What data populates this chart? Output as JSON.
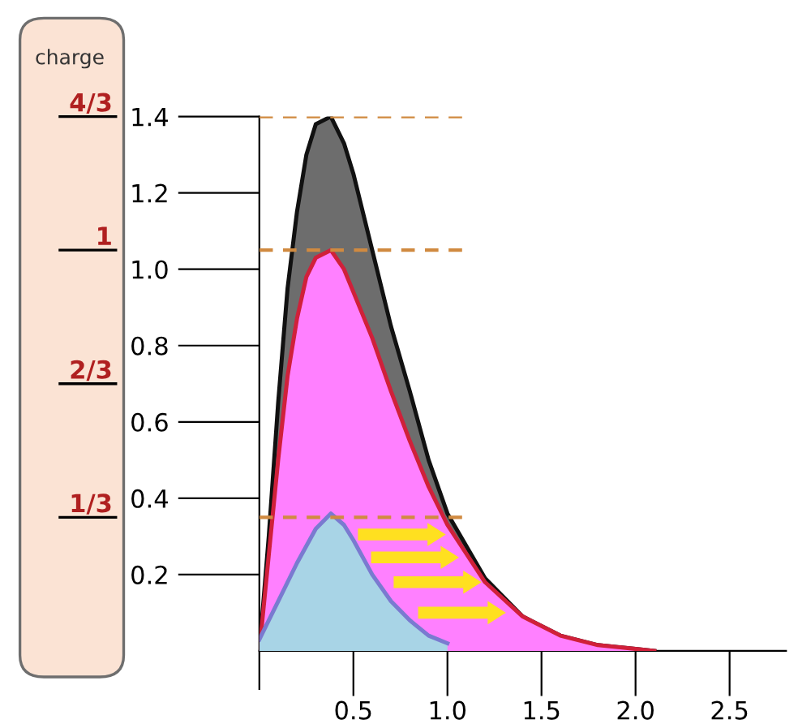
{
  "chart_data": {
    "type": "area",
    "series": [
      {
        "color": "#6d6d6d",
        "x": [
          0,
          0.05,
          0.1,
          0.15,
          0.2,
          0.25,
          0.3,
          0.38,
          0.45,
          0.5,
          0.6,
          0.7,
          0.8,
          0.9,
          1.0,
          1.2,
          1.4,
          1.6,
          1.8,
          2.0,
          2.1
        ],
        "values": [
          0,
          0.3,
          0.65,
          0.95,
          1.15,
          1.3,
          1.38,
          1.4,
          1.33,
          1.25,
          1.05,
          0.85,
          0.68,
          0.5,
          0.36,
          0.19,
          0.09,
          0.04,
          0.015,
          0.005,
          0
        ]
      },
      {
        "color": "#ff80ff",
        "x": [
          0,
          0.05,
          0.1,
          0.15,
          0.2,
          0.25,
          0.3,
          0.38,
          0.45,
          0.5,
          0.6,
          0.7,
          0.8,
          0.9,
          1.0,
          1.2,
          1.4,
          1.6,
          1.8,
          2.0,
          2.1
        ],
        "values": [
          0,
          0.25,
          0.5,
          0.72,
          0.87,
          0.98,
          1.03,
          1.05,
          1.0,
          0.94,
          0.82,
          0.68,
          0.55,
          0.43,
          0.33,
          0.18,
          0.09,
          0.04,
          0.015,
          0.005,
          0
        ]
      },
      {
        "color": "#a8d4e6",
        "x": [
          0,
          0.1,
          0.2,
          0.3,
          0.38,
          0.45,
          0.5,
          0.6,
          0.7,
          0.8,
          0.9,
          1.0
        ],
        "values": [
          0.03,
          0.13,
          0.23,
          0.32,
          0.36,
          0.33,
          0.29,
          0.2,
          0.13,
          0.08,
          0.04,
          0.02
        ]
      }
    ],
    "xlim": [
      0,
      2.8
    ],
    "xticks": [
      0.5,
      {
        "value": 1,
        "label": "1.0"
      },
      1.5,
      {
        "value": 2,
        "label": "2.0"
      },
      2.5
    ],
    "ylim": [
      0,
      1.4
    ],
    "yticks": [
      0.2,
      0.4,
      0.6,
      0.8,
      {
        "value": 1,
        "label": "1.0"
      },
      1.2,
      1.4
    ],
    "y2label": "charge",
    "y2lim": [
      0,
      1.3333
    ],
    "y2ticks": [
      {
        "value": 0.3333,
        "label": "1/3"
      },
      {
        "value": 0.6667,
        "label": "2/3"
      },
      {
        "value": 1,
        "label": "1"
      },
      {
        "value": 1.3333,
        "label": "4/3"
      }
    ],
    "ref_lines": [
      {
        "axis": "y",
        "value": 1.4,
        "color": "#d08a40",
        "line_style": "dashed"
      },
      {
        "axis": "y",
        "value": 1.05,
        "color": "#d08a40",
        "line_style": "dashed"
      },
      {
        "axis": "y",
        "value": 0.35,
        "color": "#d08a40",
        "line_style": "dashed"
      }
    ],
    "grid": false
  }
}
